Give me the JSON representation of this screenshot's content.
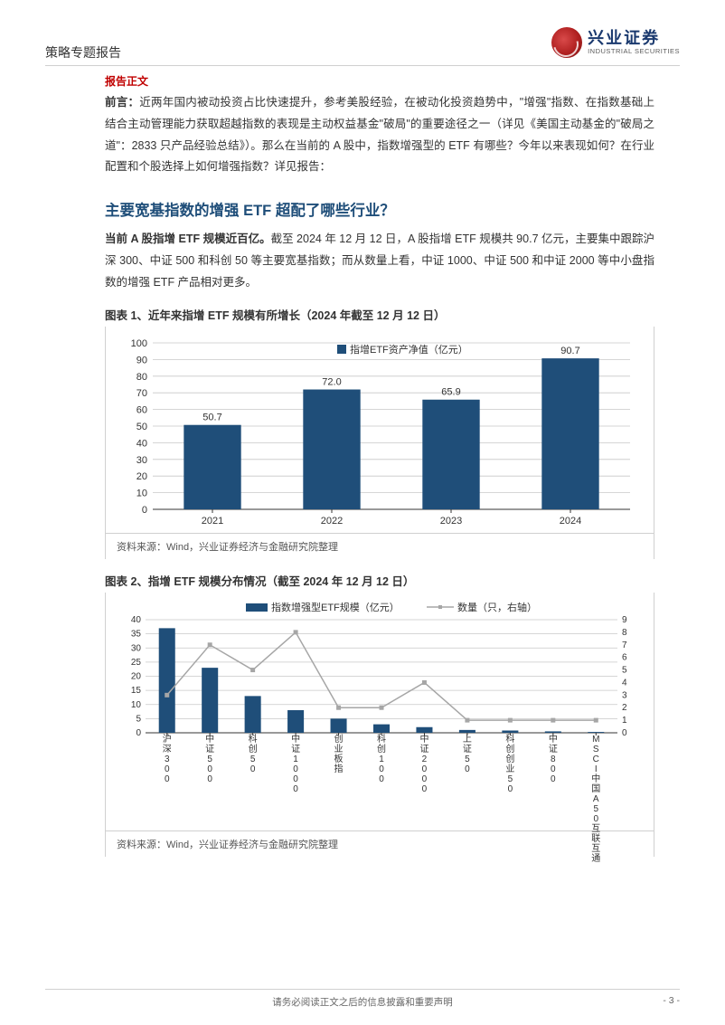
{
  "header": {
    "category": "策略专题报告",
    "logo_cn": "兴业证券",
    "logo_en": "INDUSTRIAL SECURITIES"
  },
  "section_label": "报告正文",
  "preface": {
    "lead": "前言：",
    "text": "近两年国内被动投资占比快速提升，参考美股经验，在被动化投资趋势中，\"增强\"指数、在指数基础上结合主动管理能力获取超越指数的表现是主动权益基金\"破局\"的重要途径之一（详见《美国主动基金的\"破局之道\"：2833 只产品经验总结》）。那么在当前的 A 股中，指数增强型的 ETF 有哪些？今年以来表现如何？在行业配置和个股选择上如何增强指数？详见报告："
  },
  "section_title": "主要宽基指数的增强 ETF 超配了哪些行业？",
  "paragraph1": {
    "lead": "当前 A 股指增 ETF 规模近百亿。",
    "text": "截至 2024 年 12 月 12 日，A 股指增 ETF 规模共 90.7 亿元，主要集中跟踪沪深 300、中证 500 和科创 50 等主要宽基指数；而从数量上看，中证 1000、中证 500 和中证 2000 等中小盘指数的增强 ETF 产品相对更多。"
  },
  "chart1": {
    "title": "图表 1、近年来指增 ETF 规模有所增长（2024 年截至 12 月 12 日）",
    "type": "bar",
    "legend": "指增ETF资产净值（亿元）",
    "categories": [
      "2021",
      "2022",
      "2023",
      "2024"
    ],
    "values": [
      50.7,
      72.0,
      65.9,
      90.7
    ],
    "bar_color": "#1f4e79",
    "background_color": "#ffffff",
    "grid_color": "#c8c8c8",
    "axis_color": "#333333",
    "ylim": [
      0,
      100
    ],
    "ytick_step": 10,
    "bar_width": 0.48,
    "label_fontsize": 11,
    "tick_fontsize": 11,
    "source": "资料来源：Wind，兴业证券经济与金融研究院整理"
  },
  "chart2": {
    "title": "图表 2、指增 ETF 规模分布情况（截至 2024 年 12 月 12 日）",
    "type": "combo",
    "legend_bar": "指数增强型ETF规模（亿元）",
    "legend_line": "数量（只，右轴）",
    "categories": [
      "沪深300",
      "中证500",
      "科创50",
      "中证1000",
      "创业板指",
      "科创100",
      "中证2000",
      "上证50",
      "科创创业50",
      "中证800",
      "MSCI中国A50互联互通"
    ],
    "bar_values": [
      37,
      23,
      13,
      8,
      5,
      3,
      2,
      1,
      0.8,
      0.5,
      0.3
    ],
    "line_values": [
      3,
      7,
      5,
      8,
      2,
      2,
      4,
      1,
      1,
      1,
      1
    ],
    "bar_color": "#1f4e79",
    "line_color": "#a6a6a6",
    "marker_color": "#a6a6a6",
    "marker_size": 4,
    "background_color": "#ffffff",
    "grid_color": "#c8c8c8",
    "axis_color": "#333333",
    "ylim_left": [
      0,
      40
    ],
    "ytick_left_step": 5,
    "ylim_right": [
      0,
      9
    ],
    "ytick_right_step": 1,
    "bar_width": 0.38,
    "label_fontsize": 11,
    "tick_fontsize": 10,
    "source": "资料来源：Wind，兴业证券经济与金融研究院整理"
  },
  "footer": {
    "disclaimer": "请务必阅读正文之后的信息披露和重要声明",
    "page": "- 3 -"
  }
}
